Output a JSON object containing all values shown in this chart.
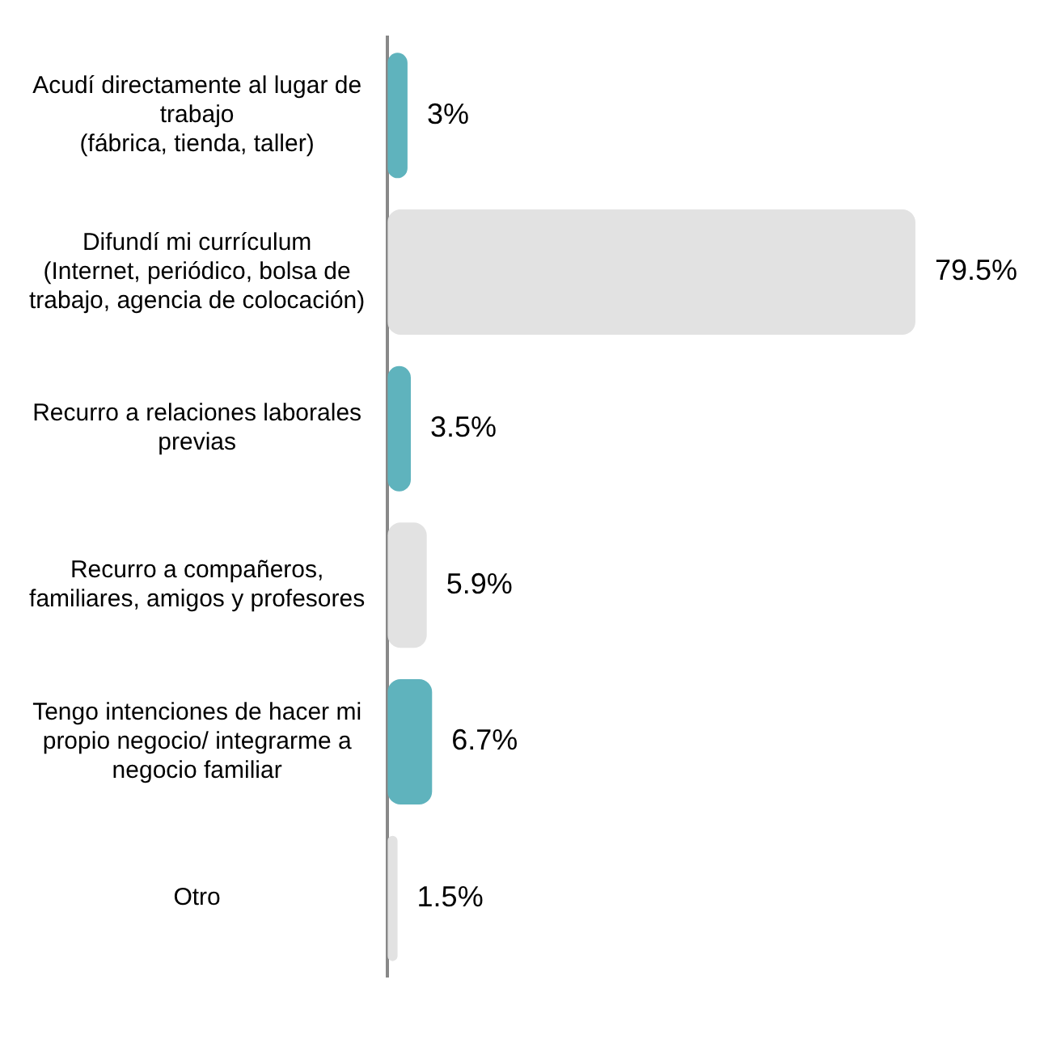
{
  "chart_data": {
    "type": "bar",
    "orientation": "horizontal",
    "categories": [
      "Acudí directamente al lugar de\ntrabajo\n(fábrica, tienda, taller)",
      "Difundí mi currículum\n(Internet, periódico, bolsa de\ntrabajo, agencia de colocación)",
      "Recurro a relaciones laborales\nprevias",
      "Recurro a compañeros,\nfamiliares, amigos y profesores",
      "Tengo intenciones de hacer mi\npropio negocio/ integrarme a\nnegocio familiar",
      "Otro"
    ],
    "values": [
      3,
      79.5,
      3.5,
      5.9,
      6.7,
      1.5
    ],
    "colors": [
      "#5fb3bd",
      "#e2e2e2",
      "#5fb3bd",
      "#e2e2e2",
      "#5fb3bd",
      "#e2e2e2"
    ],
    "value_labels": [
      "3%",
      "79.5%",
      "3.5%",
      "5.9%",
      "6.7%",
      "1.5%"
    ],
    "tick_labels": "y",
    "legend": false
  }
}
